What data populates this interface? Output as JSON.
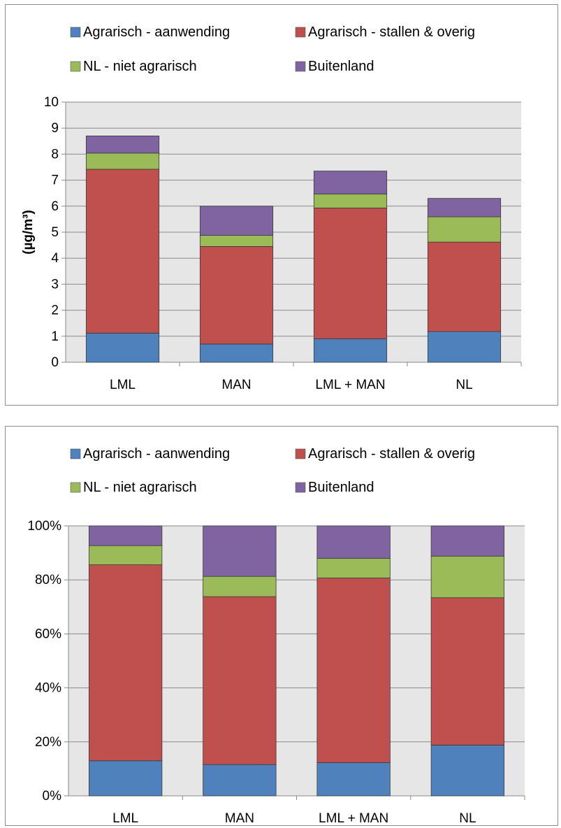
{
  "chart_data": [
    {
      "type": "bar",
      "stacked": true,
      "title": "",
      "xlabel": "",
      "ylabel": "(µg/m³)",
      "ylim": [
        0,
        10
      ],
      "yticks": [
        "0",
        "1",
        "2",
        "3",
        "4",
        "5",
        "6",
        "7",
        "8",
        "9",
        "10"
      ],
      "grid": true,
      "legend": "top",
      "categories": [
        "LML",
        "MAN",
        "LML + MAN",
        "NL"
      ],
      "series": [
        {
          "name": "Agrarisch - aanwending",
          "color": "#4f81bd",
          "values": [
            1.12,
            0.7,
            0.9,
            1.18
          ]
        },
        {
          "name": "Agrarisch - stallen & overig",
          "color": "#c0504d",
          "values": [
            6.3,
            3.75,
            5.03,
            3.44
          ]
        },
        {
          "name": "NL - niet agrarisch",
          "color": "#9bbb59",
          "values": [
            0.62,
            0.43,
            0.54,
            0.97
          ]
        },
        {
          "name": "Buitenland",
          "color": "#8064a2",
          "values": [
            0.66,
            1.12,
            0.88,
            0.71
          ]
        }
      ]
    },
    {
      "type": "bar",
      "stacked": true,
      "percent": true,
      "title": "",
      "xlabel": "",
      "ylabel": "",
      "ylim": [
        0,
        100
      ],
      "yticks": [
        "0%",
        "20%",
        "40%",
        "60%",
        "80%",
        "100%"
      ],
      "grid": true,
      "legend": "top",
      "categories": [
        "LML",
        "MAN",
        "LML + MAN",
        "NL"
      ],
      "series": [
        {
          "name": "Agrarisch - aanwending",
          "color": "#4f81bd",
          "values": [
            13,
            11.6,
            12.3,
            18.8
          ]
        },
        {
          "name": "Agrarisch - stallen & overig",
          "color": "#c0504d",
          "values": [
            72.6,
            62.2,
            68.4,
            54.6
          ]
        },
        {
          "name": "NL - niet agrarisch",
          "color": "#9bbb59",
          "values": [
            7.1,
            7.5,
            7.3,
            15.4
          ]
        },
        {
          "name": "Buitenland",
          "color": "#8064a2",
          "values": [
            7.3,
            18.7,
            12.0,
            11.2
          ]
        }
      ]
    }
  ]
}
